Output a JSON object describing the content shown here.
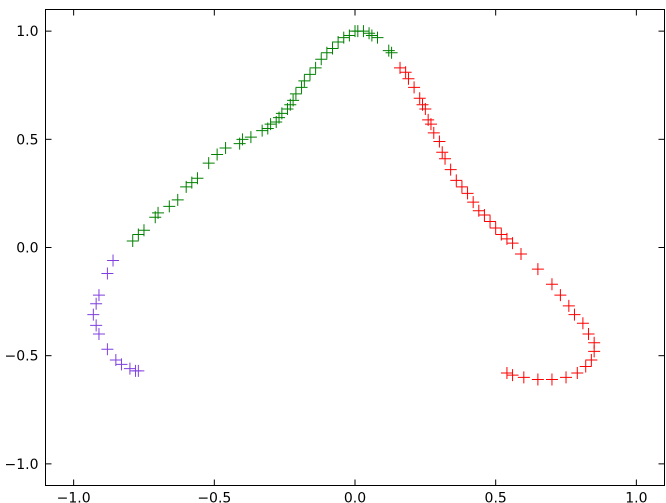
{
  "chart_data": {
    "type": "scatter",
    "title": "",
    "xlabel": "",
    "ylabel": "",
    "xlim": [
      -1.1,
      1.1
    ],
    "ylim": [
      -1.1,
      1.1
    ],
    "grid": false,
    "marker": "+",
    "x_ticks": [
      -1.0,
      -0.5,
      0.0,
      0.5,
      1.0
    ],
    "x_tick_labels": [
      "−1.0",
      "−0.5",
      "0.0",
      "0.5",
      "1.0"
    ],
    "y_ticks": [
      -1.0,
      -0.5,
      0.0,
      0.5,
      1.0
    ],
    "y_tick_labels": [
      "−1.0",
      "−0.5",
      "0.0",
      "0.5",
      "1.0"
    ],
    "series": [
      {
        "color": "#008000",
        "points": [
          [
            -0.79,
            0.03
          ],
          [
            -0.77,
            0.06
          ],
          [
            -0.75,
            0.08
          ],
          [
            -0.71,
            0.14
          ],
          [
            -0.7,
            0.16
          ],
          [
            -0.66,
            0.19
          ],
          [
            -0.63,
            0.22
          ],
          [
            -0.6,
            0.28
          ],
          [
            -0.58,
            0.3
          ],
          [
            -0.56,
            0.32
          ],
          [
            -0.52,
            0.39
          ],
          [
            -0.49,
            0.43
          ],
          [
            -0.46,
            0.46
          ],
          [
            -0.41,
            0.48
          ],
          [
            -0.4,
            0.5
          ],
          [
            -0.37,
            0.51
          ],
          [
            -0.33,
            0.54
          ],
          [
            -0.31,
            0.55
          ],
          [
            -0.3,
            0.57
          ],
          [
            -0.28,
            0.58
          ],
          [
            -0.27,
            0.6
          ],
          [
            -0.26,
            0.62
          ],
          [
            -0.24,
            0.64
          ],
          [
            -0.23,
            0.66
          ],
          [
            -0.22,
            0.68
          ],
          [
            -0.21,
            0.71
          ],
          [
            -0.19,
            0.74
          ],
          [
            -0.18,
            0.77
          ],
          [
            -0.16,
            0.8
          ],
          [
            -0.14,
            0.83
          ],
          [
            -0.12,
            0.87
          ],
          [
            -0.1,
            0.9
          ],
          [
            -0.08,
            0.92
          ],
          [
            -0.06,
            0.95
          ],
          [
            -0.04,
            0.97
          ],
          [
            -0.02,
            0.98
          ],
          [
            0.0,
            1.0
          ],
          [
            0.01,
            1.0
          ],
          [
            0.03,
            1.0
          ],
          [
            0.05,
            0.99
          ],
          [
            0.06,
            0.98
          ],
          [
            0.08,
            0.97
          ],
          [
            0.12,
            0.91
          ],
          [
            0.13,
            0.9
          ]
        ]
      },
      {
        "color": "#ff0000",
        "points": [
          [
            0.16,
            0.83
          ],
          [
            0.18,
            0.81
          ],
          [
            0.19,
            0.78
          ],
          [
            0.21,
            0.74
          ],
          [
            0.23,
            0.69
          ],
          [
            0.24,
            0.66
          ],
          [
            0.25,
            0.64
          ],
          [
            0.26,
            0.59
          ],
          [
            0.27,
            0.57
          ],
          [
            0.28,
            0.53
          ],
          [
            0.3,
            0.49
          ],
          [
            0.31,
            0.44
          ],
          [
            0.32,
            0.41
          ],
          [
            0.34,
            0.36
          ],
          [
            0.36,
            0.31
          ],
          [
            0.38,
            0.28
          ],
          [
            0.4,
            0.25
          ],
          [
            0.42,
            0.21
          ],
          [
            0.44,
            0.17
          ],
          [
            0.46,
            0.15
          ],
          [
            0.48,
            0.12
          ],
          [
            0.5,
            0.09
          ],
          [
            0.52,
            0.06
          ],
          [
            0.54,
            0.04
          ],
          [
            0.56,
            0.02
          ],
          [
            0.59,
            -0.03
          ],
          [
            0.65,
            -0.1
          ],
          [
            0.7,
            -0.17
          ],
          [
            0.73,
            -0.22
          ],
          [
            0.76,
            -0.27
          ],
          [
            0.78,
            -0.31
          ],
          [
            0.81,
            -0.35
          ],
          [
            0.83,
            -0.4
          ],
          [
            0.85,
            -0.44
          ],
          [
            0.85,
            -0.48
          ],
          [
            0.84,
            -0.52
          ],
          [
            0.82,
            -0.55
          ],
          [
            0.79,
            -0.58
          ],
          [
            0.75,
            -0.6
          ],
          [
            0.7,
            -0.61
          ],
          [
            0.65,
            -0.61
          ],
          [
            0.6,
            -0.6
          ],
          [
            0.56,
            -0.59
          ],
          [
            0.54,
            -0.58
          ]
        ]
      },
      {
        "color": "#7f3fdf",
        "points": [
          [
            -0.86,
            -0.06
          ],
          [
            -0.88,
            -0.12
          ],
          [
            -0.91,
            -0.22
          ],
          [
            -0.92,
            -0.26
          ],
          [
            -0.93,
            -0.31
          ],
          [
            -0.92,
            -0.36
          ],
          [
            -0.91,
            -0.4
          ],
          [
            -0.88,
            -0.47
          ],
          [
            -0.85,
            -0.52
          ],
          [
            -0.83,
            -0.54
          ],
          [
            -0.8,
            -0.56
          ],
          [
            -0.78,
            -0.57
          ],
          [
            -0.77,
            -0.57
          ]
        ]
      }
    ]
  }
}
